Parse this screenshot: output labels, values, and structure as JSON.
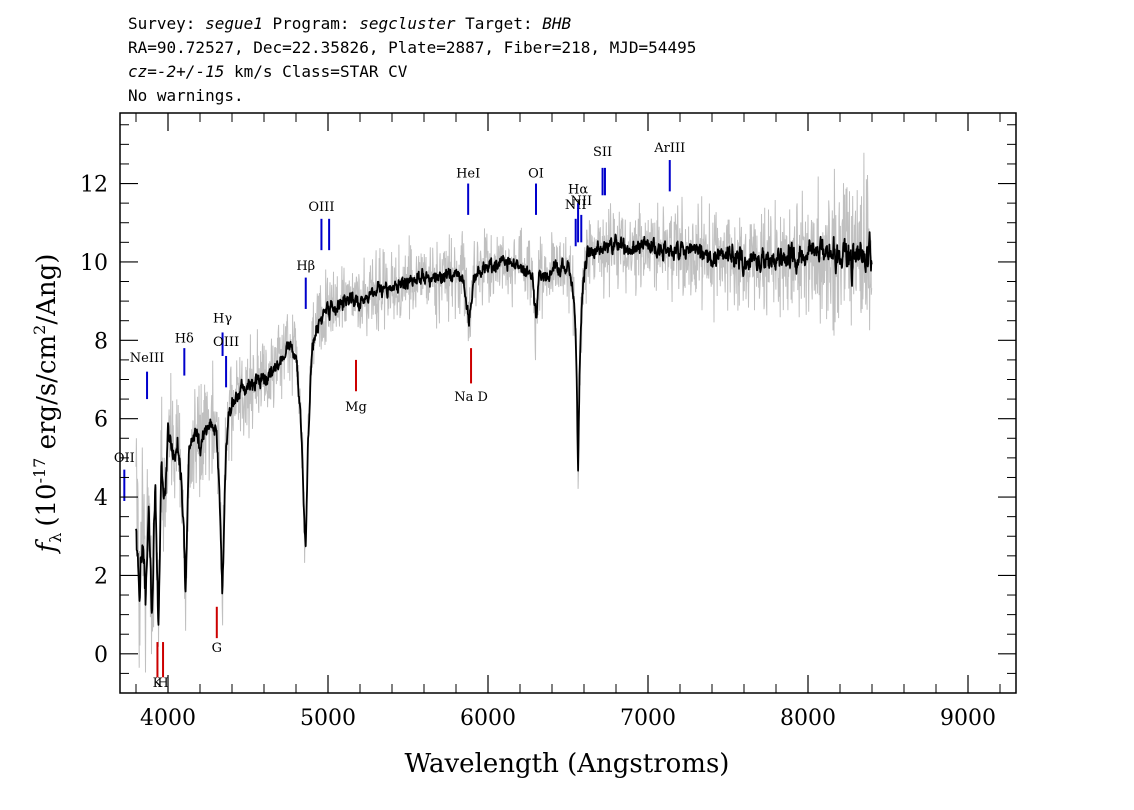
{
  "header": {
    "survey_label": "Survey: ",
    "survey": "segue1",
    "program_label": " Program: ",
    "program": "segcluster",
    "target_label": " Target: ",
    "target": "BHB",
    "line2": "RA=90.72527, Dec=22.35826, Plate=2887, Fiber=218, MJD=54495",
    "cz_label": "cz",
    "cz_eq": "=",
    "cz_value": "-2+/-15",
    "cz_rest": " km/s Class=STAR CV",
    "line4": "No warnings."
  },
  "chart_data": {
    "type": "line",
    "xlabel": "Wavelength (Angstroms)",
    "ylabel_f": "f",
    "ylabel_sub": "λ",
    "ylabel_pre": "(10",
    "ylabel_exp": "-17",
    "ylabel_mid": " erg/s/cm",
    "ylabel_exp2": "2",
    "ylabel_post": "/Ang)",
    "xlim": [
      3700,
      9300
    ],
    "ylim": [
      -1.0,
      13.8
    ],
    "xticks": [
      4000,
      5000,
      6000,
      7000,
      8000,
      9000
    ],
    "xtick_labels": [
      "4000",
      "5000",
      "6000",
      "7000",
      "8000",
      "9000"
    ],
    "yticks": [
      0,
      2,
      4,
      6,
      8,
      10,
      12
    ],
    "ytick_labels": [
      "0",
      "2",
      "4",
      "6",
      "8",
      "10",
      "12"
    ],
    "colors": {
      "flux": "#000000",
      "error_band": "#c0c0c0",
      "emission": "#0000cc",
      "absorption": "#cc0000"
    },
    "spectrum": {
      "x": [
        3800,
        3820,
        3840,
        3860,
        3880,
        3900,
        3920,
        3940,
        3960,
        3980,
        4000,
        4030,
        4060,
        4080,
        4100,
        4110,
        4130,
        4160,
        4200,
        4250,
        4300,
        4320,
        4340,
        4360,
        4380,
        4420,
        4480,
        4550,
        4620,
        4700,
        4760,
        4800,
        4830,
        4850,
        4861,
        4875,
        4900,
        4950,
        5000,
        5050,
        5100,
        5200,
        5300,
        5400,
        5500,
        5600,
        5700,
        5800,
        5850,
        5880,
        5895,
        5910,
        5950,
        6000,
        6100,
        6200,
        6280,
        6300,
        6320,
        6400,
        6500,
        6540,
        6555,
        6563,
        6572,
        6590,
        6620,
        6700,
        6800,
        6900,
        7000,
        7100,
        7200,
        7300,
        7400,
        7500,
        7600,
        7700,
        7800,
        7900,
        8000,
        8100,
        8200,
        8300,
        8400
      ],
      "flux": [
        3.8,
        1.5,
        3.2,
        1.5,
        3.8,
        1.0,
        4.2,
        0.8,
        5.0,
        3.8,
        5.5,
        5.0,
        5.5,
        4.5,
        3.0,
        1.5,
        5.0,
        5.6,
        5.2,
        5.8,
        5.9,
        4.5,
        1.5,
        5.0,
        6.2,
        6.5,
        6.7,
        7.0,
        7.0,
        7.5,
        7.9,
        7.6,
        6.0,
        3.5,
        2.8,
        5.5,
        7.8,
        8.5,
        8.8,
        8.8,
        9.0,
        9.0,
        9.3,
        9.3,
        9.5,
        9.6,
        9.6,
        9.7,
        9.5,
        8.5,
        9.0,
        9.6,
        9.8,
        9.9,
        10.0,
        9.9,
        9.6,
        8.5,
        9.6,
        9.8,
        9.9,
        9.0,
        7.0,
        4.6,
        7.0,
        9.3,
        10.2,
        10.3,
        10.5,
        10.3,
        10.4,
        10.3,
        10.2,
        10.3,
        10.1,
        10.2,
        10.0,
        10.1,
        10.0,
        10.2,
        10.1,
        10.2,
        10.2,
        10.1,
        10.2
      ],
      "error": [
        1.4,
        1.3,
        1.2,
        1.1,
        1.0,
        1.0,
        0.9,
        0.9,
        0.9,
        0.85,
        0.85,
        0.8,
        0.8,
        0.8,
        0.8,
        0.8,
        0.75,
        0.75,
        0.7,
        0.7,
        0.7,
        0.7,
        0.7,
        0.65,
        0.65,
        0.6,
        0.6,
        0.6,
        0.6,
        0.55,
        0.55,
        0.55,
        0.55,
        0.55,
        0.55,
        0.55,
        0.55,
        0.55,
        0.5,
        0.5,
        0.5,
        0.5,
        0.5,
        0.5,
        0.5,
        0.5,
        0.5,
        0.5,
        0.5,
        0.5,
        0.5,
        0.5,
        0.5,
        0.5,
        0.5,
        0.5,
        0.5,
        0.5,
        0.5,
        0.5,
        0.5,
        0.5,
        0.5,
        0.5,
        0.5,
        0.5,
        0.5,
        0.5,
        0.55,
        0.55,
        0.6,
        0.6,
        0.6,
        0.6,
        0.65,
        0.65,
        0.7,
        0.7,
        0.75,
        0.8,
        0.85,
        0.9,
        1.0,
        1.2,
        1.2
      ]
    },
    "line_markers": [
      {
        "label": "OII",
        "x": 3727,
        "y1": 3.9,
        "y2": 4.7,
        "type": "emission",
        "label_y": 4.9
      },
      {
        "label": "NeIII",
        "x": 3869,
        "y1": 6.5,
        "y2": 7.2,
        "type": "emission",
        "label_y": 7.45
      },
      {
        "label": "Hδ",
        "x": 4102,
        "y1": 7.1,
        "y2": 7.8,
        "type": "emission",
        "label_y": 7.95
      },
      {
        "label": "Hγ",
        "x": 4341,
        "y1": 7.6,
        "y2": 8.2,
        "type": "emission",
        "label_y": 8.45
      },
      {
        "label": "OIII",
        "x": 4363,
        "y1": 6.8,
        "y2": 7.6,
        "type": "emission",
        "label_y": 7.85
      },
      {
        "label": "Hβ",
        "x": 4861,
        "y1": 8.8,
        "y2": 9.6,
        "type": "emission",
        "label_y": 9.8
      },
      {
        "label": "OIII",
        "x": 4959,
        "y1": 10.3,
        "y2": 11.1,
        "type": "emission",
        "label_y": 11.3
      },
      {
        "label": "OIII",
        "x": 5007,
        "y1": 10.3,
        "y2": 11.1,
        "type": "emission",
        "label_y": null
      },
      {
        "label": "HeI",
        "x": 5876,
        "y1": 11.2,
        "y2": 12.0,
        "type": "emission",
        "label_y": 12.15
      },
      {
        "label": "OI",
        "x": 6300,
        "y1": 11.2,
        "y2": 12.0,
        "type": "emission",
        "label_y": 12.15
      },
      {
        "label": "NII",
        "x": 6548,
        "y1": 10.4,
        "y2": 11.1,
        "type": "emission",
        "label_y": 11.35
      },
      {
        "label": "Hα",
        "x": 6563,
        "y1": 10.5,
        "y2": 11.5,
        "type": "emission",
        "label_y": 11.75
      },
      {
        "label": "NII",
        "x": 6583,
        "y1": 10.5,
        "y2": 11.2,
        "type": "emission",
        "label_y": 11.45
      },
      {
        "label": "SII",
        "x": 6716,
        "y1": 11.7,
        "y2": 12.4,
        "type": "emission",
        "label_y": 12.7
      },
      {
        "label": "SII",
        "x": 6731,
        "y1": 11.7,
        "y2": 12.4,
        "type": "emission",
        "label_y": null
      },
      {
        "label": "ArIII",
        "x": 7136,
        "y1": 11.8,
        "y2": 12.6,
        "type": "emission",
        "label_y": 12.8
      },
      {
        "label": "K",
        "x": 3934,
        "y1": -0.6,
        "y2": 0.3,
        "type": "absorption",
        "label_y": -0.85
      },
      {
        "label": "H",
        "x": 3969,
        "y1": -0.6,
        "y2": 0.3,
        "type": "absorption",
        "label_y": -0.85
      },
      {
        "label": "G",
        "x": 4305,
        "y1": 0.4,
        "y2": 1.2,
        "type": "absorption",
        "label_y": 0.05
      },
      {
        "label": "Mg",
        "x": 5175,
        "y1": 6.7,
        "y2": 7.5,
        "type": "absorption",
        "label_y": 6.2
      },
      {
        "label": "Na D",
        "x": 5894,
        "y1": 6.9,
        "y2": 7.8,
        "type": "absorption",
        "label_y": 6.45
      }
    ]
  }
}
